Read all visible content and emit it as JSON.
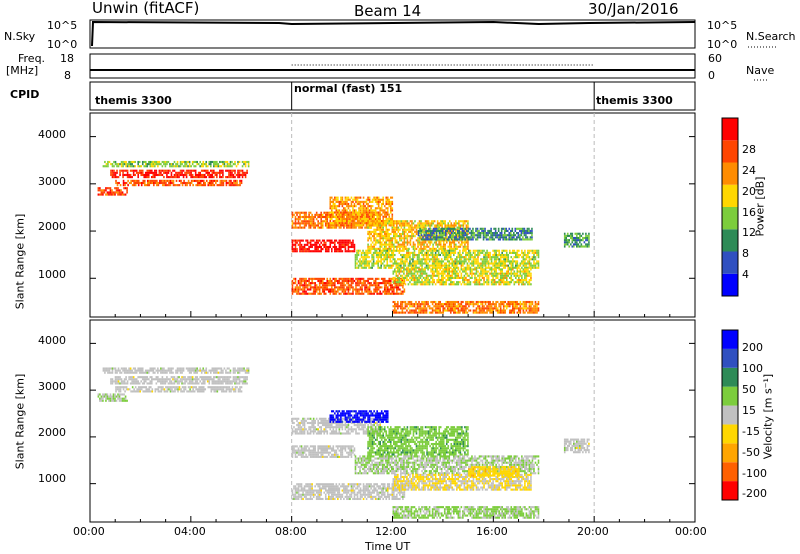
{
  "header": {
    "station": "Unwin (fitACF)",
    "beam": "Beam 14",
    "date": "30/Jan/2016"
  },
  "aux_panels": {
    "nsky": {
      "label": "N.Sky",
      "ticks": [
        "10^5",
        "10^0"
      ]
    },
    "nsearch": {
      "label": "N.Search",
      "ticks": [
        "10^5",
        "10^0"
      ]
    },
    "freq": {
      "label_line1": "Freq.",
      "label_line2": "[MHz]",
      "ticks": [
        "18",
        "8"
      ]
    },
    "nave": {
      "label": "Nave",
      "ticks": [
        "60",
        "0"
      ]
    },
    "cpid": {
      "label": "CPID",
      "modes": [
        "themis 3300",
        "normal (fast) 151",
        "themis 3300"
      ]
    }
  },
  "chart_data": [
    {
      "type": "heatmap",
      "title": "",
      "xlabel": "Time UT",
      "ylabel": "Slant Range [km]",
      "xticks": [
        "00:00",
        "04:00",
        "08:00",
        "12:00",
        "16:00",
        "20:00",
        "00:00"
      ],
      "yticks": [
        "1000",
        "2000",
        "3000",
        "4000"
      ],
      "xlim_hours": [
        0,
        24
      ],
      "ylim_km": [
        180,
        4500
      ],
      "colorbar": {
        "label": "Power [dB]",
        "ticks": [
          "4",
          "8",
          "12",
          "16",
          "20",
          "24",
          "28"
        ],
        "range": [
          0,
          30
        ],
        "colors": [
          "#0000ff",
          "#3050c0",
          "#2e8b57",
          "#7ccd3c",
          "#ffd700",
          "#ff8c00",
          "#ff4500",
          "#ff0000"
        ]
      },
      "regions": [
        {
          "t": [
            0.5,
            6.3
          ],
          "r": [
            3350,
            3480
          ],
          "z": 14
        },
        {
          "t": [
            0.8,
            6.2
          ],
          "r": [
            3120,
            3260
          ],
          "z": 27
        },
        {
          "t": [
            1.0,
            6.0
          ],
          "r": [
            2950,
            3080
          ],
          "z": 24
        },
        {
          "t": [
            0.3,
            1.5
          ],
          "r": [
            2750,
            2900
          ],
          "z": 25
        },
        {
          "t": [
            8.0,
            10.5
          ],
          "r": [
            1550,
            1800
          ],
          "z": 29
        },
        {
          "t": [
            8.0,
            11.5
          ],
          "r": [
            2050,
            2400
          ],
          "z": 22
        },
        {
          "t": [
            9.5,
            12.0
          ],
          "r": [
            2100,
            2700
          ],
          "z": 20
        },
        {
          "t": [
            11.0,
            15.0
          ],
          "r": [
            1600,
            2200
          ],
          "z": 18
        },
        {
          "t": [
            10.5,
            17.8
          ],
          "r": [
            1200,
            1600
          ],
          "z": 15
        },
        {
          "t": [
            8.0,
            12.5
          ],
          "r": [
            650,
            1000
          ],
          "z": 24
        },
        {
          "t": [
            12.0,
            17.5
          ],
          "r": [
            850,
            1200
          ],
          "z": 16
        },
        {
          "t": [
            12.0,
            17.8
          ],
          "r": [
            250,
            500
          ],
          "z": 22
        },
        {
          "t": [
            13.0,
            17.5
          ],
          "r": [
            1800,
            2050
          ],
          "z": 9
        },
        {
          "t": [
            18.8,
            19.8
          ],
          "r": [
            1650,
            1950
          ],
          "z": 10
        }
      ]
    },
    {
      "type": "heatmap",
      "title": "",
      "xlabel": "Time UT",
      "ylabel": "Slant Range [km]",
      "xticks": [
        "00:00",
        "04:00",
        "08:00",
        "12:00",
        "16:00",
        "20:00",
        "00:00"
      ],
      "yticks": [
        "1000",
        "2000",
        "3000",
        "4000"
      ],
      "xlim_hours": [
        0,
        24
      ],
      "ylim_km": [
        180,
        4500
      ],
      "colorbar": {
        "label": "Velocity [m s⁻¹]",
        "ticks": [
          "200",
          "100",
          "50",
          "15",
          "-15",
          "-50",
          "-100",
          "-200"
        ],
        "range": [
          -250,
          250
        ],
        "colors": [
          "#ff0000",
          "#ff6000",
          "#ffa500",
          "#ffd700",
          "#c0c0c0",
          "#7ccd3c",
          "#2e8b57",
          "#3050c0",
          "#0000ff"
        ]
      },
      "regions": [
        {
          "t": [
            0.5,
            6.3
          ],
          "r": [
            3350,
            3480
          ],
          "z": 0
        },
        {
          "t": [
            0.8,
            6.2
          ],
          "r": [
            3120,
            3260
          ],
          "z": 0
        },
        {
          "t": [
            1.0,
            6.0
          ],
          "r": [
            2950,
            3080
          ],
          "z": 0
        },
        {
          "t": [
            0.3,
            1.5
          ],
          "r": [
            2750,
            2900
          ],
          "z": 30
        },
        {
          "t": [
            8.0,
            10.5
          ],
          "r": [
            1550,
            1800
          ],
          "z": 0
        },
        {
          "t": [
            8.0,
            11.5
          ],
          "r": [
            2050,
            2400
          ],
          "z": 0
        },
        {
          "t": [
            9.5,
            11.8
          ],
          "r": [
            2300,
            2550
          ],
          "z": 220
        },
        {
          "t": [
            11.0,
            15.0
          ],
          "r": [
            1600,
            2200
          ],
          "z": 60
        },
        {
          "t": [
            10.5,
            17.8
          ],
          "r": [
            1200,
            1600
          ],
          "z": 25
        },
        {
          "t": [
            8.0,
            12.5
          ],
          "r": [
            650,
            1000
          ],
          "z": 0
        },
        {
          "t": [
            12.0,
            17.5
          ],
          "r": [
            850,
            1200
          ],
          "z": -30
        },
        {
          "t": [
            12.0,
            17.8
          ],
          "r": [
            250,
            500
          ],
          "z": 40
        },
        {
          "t": [
            15.0,
            17.0
          ],
          "r": [
            1150,
            1350
          ],
          "z": -60
        },
        {
          "t": [
            18.8,
            19.8
          ],
          "r": [
            1650,
            1950
          ],
          "z": 0
        }
      ]
    }
  ]
}
